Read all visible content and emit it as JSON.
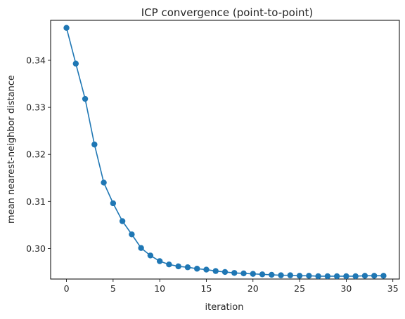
{
  "chart_data": {
    "type": "line",
    "title": "ICP convergence (point-to-point)",
    "xlabel": "iteration",
    "ylabel": "mean nearest-neighbor distance",
    "xlim": [
      -1.7,
      35.7
    ],
    "ylim": [
      0.2935,
      0.3485
    ],
    "xticks": [
      0,
      5,
      10,
      15,
      20,
      25,
      30,
      35
    ],
    "yticks": [
      0.3,
      0.31,
      0.32,
      0.33,
      0.34
    ],
    "grid": false,
    "legend": "none",
    "color": "#1f77b4",
    "markers": "circle",
    "series": [
      {
        "x": [
          0,
          1,
          2,
          3,
          4,
          5,
          6,
          7,
          8,
          9,
          10,
          11,
          12,
          13,
          14,
          15,
          16,
          17,
          18,
          19,
          20,
          21,
          22,
          23,
          24,
          25,
          26,
          27,
          28,
          29,
          30,
          31,
          32,
          33,
          34
        ],
        "values": [
          0.3469,
          0.3393,
          0.3318,
          0.3221,
          0.314,
          0.3096,
          0.3058,
          0.303,
          0.3001,
          0.2985,
          0.2973,
          0.2966,
          0.2962,
          0.296,
          0.2957,
          0.2955,
          0.2952,
          0.295,
          0.2948,
          0.2947,
          0.2946,
          0.2945,
          0.2944,
          0.2943,
          0.2943,
          0.2942,
          0.2942,
          0.2941,
          0.2941,
          0.2941,
          0.2941,
          0.2941,
          0.2942,
          0.2942,
          0.2942
        ]
      }
    ]
  }
}
